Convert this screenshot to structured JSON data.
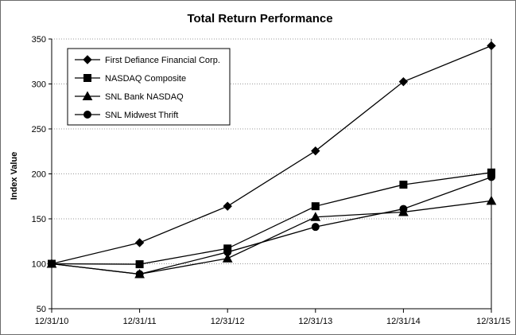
{
  "chart_data": {
    "type": "line",
    "title": "Total Return Performance",
    "xlabel": "",
    "ylabel": "Index Value",
    "x": [
      "12/31/10",
      "12/31/11",
      "12/31/12",
      "12/31/13",
      "12/31/14",
      "12/31/15"
    ],
    "ylim": [
      50,
      350
    ],
    "yticks": [
      50,
      100,
      150,
      200,
      250,
      300,
      350
    ],
    "grid": "horizontal",
    "legend_position": "top-left",
    "series": [
      {
        "name": "First Defiance Financial Corp.",
        "marker": "diamond",
        "values": [
          100,
          123.5,
          164,
          225.5,
          302.5,
          342.5
        ]
      },
      {
        "name": "NASDAQ Composite",
        "marker": "square",
        "values": [
          100,
          99.5,
          117,
          164,
          188,
          201.5
        ]
      },
      {
        "name": "SNL Bank NASDAQ",
        "marker": "triangle",
        "values": [
          100,
          88.5,
          106,
          152,
          157.5,
          170
        ]
      },
      {
        "name": "SNL Midwest Thrift",
        "marker": "circle",
        "values": [
          100,
          88.5,
          113,
          141,
          161,
          196.5
        ]
      }
    ]
  }
}
